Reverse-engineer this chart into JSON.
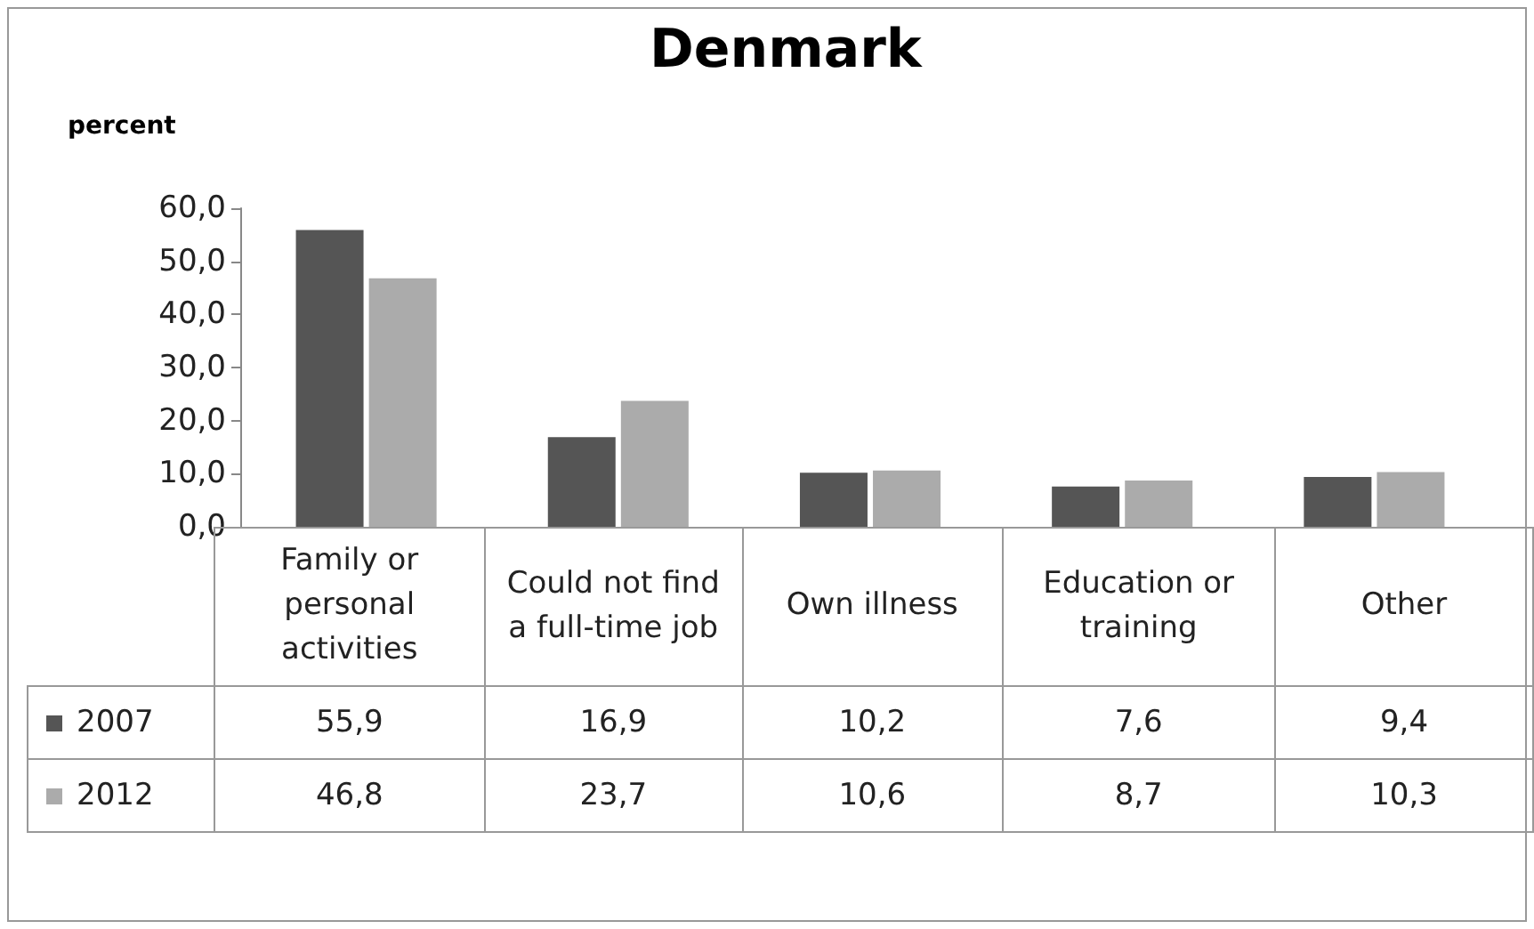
{
  "chart_data": {
    "type": "bar",
    "title": "Denmark",
    "ylabel": "percent",
    "categories": [
      "Family or personal activities",
      "Could not find a full-time job",
      "Own illness",
      "Education or training",
      "Other"
    ],
    "series": [
      {
        "name": "2007",
        "color": "#555555",
        "values": [
          55.9,
          16.9,
          10.2,
          7.6,
          9.4
        ],
        "value_labels": [
          "55,9",
          "16,9",
          "10,2",
          "7,6",
          "9,4"
        ]
      },
      {
        "name": "2012",
        "color": "#ababab",
        "values": [
          46.8,
          23.7,
          10.6,
          8.7,
          10.3
        ],
        "value_labels": [
          "46,8",
          "23,7",
          "10,6",
          "8,7",
          "10,3"
        ]
      }
    ],
    "ylim": [
      0,
      60
    ],
    "yticks": [
      {
        "value": 0,
        "label": "0,0"
      },
      {
        "value": 10,
        "label": "10,0"
      },
      {
        "value": 20,
        "label": "20,0"
      },
      {
        "value": 30,
        "label": "30,0"
      },
      {
        "value": 40,
        "label": "40,0"
      },
      {
        "value": 50,
        "label": "50,0"
      },
      {
        "value": 60,
        "label": "60,0"
      }
    ],
    "grid": false,
    "legend": "bottom",
    "data_labels": true
  }
}
